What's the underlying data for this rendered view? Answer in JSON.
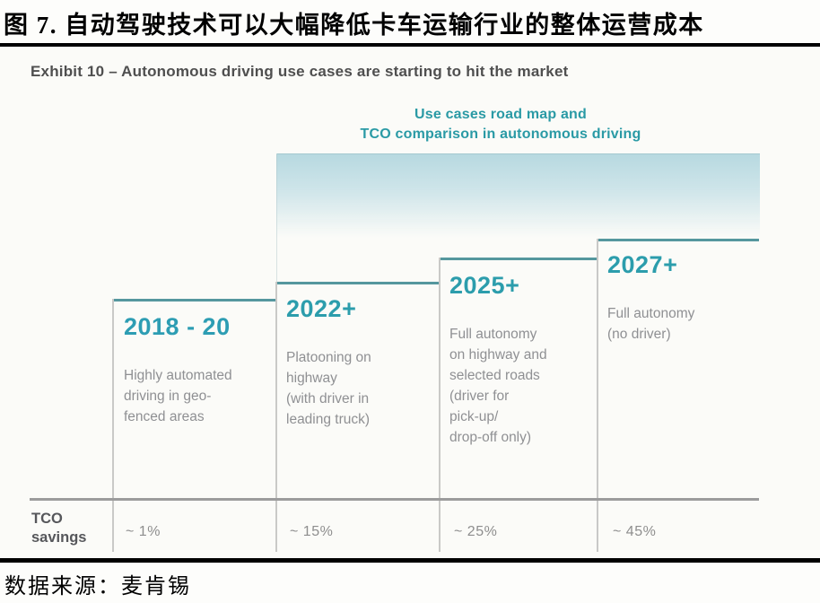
{
  "report": {
    "title_cn": "图 7. 自动驾驶技术可以大幅降低卡车运输行业的整体运营成本",
    "source_cn": "数据来源：麦肯锡"
  },
  "exhibit": {
    "heading": "Exhibit 10 – Autonomous driving use cases are starting to hit the market",
    "subtitle": "Use cases road map and\nTCO comparison in autonomous driving"
  },
  "steps": [
    {
      "year": "2018 - 20",
      "description": "Highly automated\ndriving in geo-\nfenced areas",
      "tco_saving": "~ 1%"
    },
    {
      "year": "2022+",
      "description": "Platooning on\nhighway\n(with driver in\nleading truck)",
      "tco_saving": "~ 15%"
    },
    {
      "year": "2025+",
      "description": "Full autonomy\non highway and\nselected roads\n(driver for\npick-up/\ndrop-off only)",
      "tco_saving": "~ 25%"
    },
    {
      "year": "2027+",
      "description": "Full autonomy\n(no driver)",
      "tco_saving": "~ 45%"
    }
  ],
  "tco_row": {
    "label": "TCO\nsavings"
  },
  "colors": {
    "accent_teal": "#2c9dac",
    "step_line_teal": "#55979e",
    "band_gradient_top": "#b7d9e0",
    "body_text_gray": "#8f9093",
    "heading_gray": "#4f4f4f",
    "rule_black": "#000000"
  },
  "chart_data": {
    "type": "table",
    "title": "Use cases road map and TCO comparison in autonomous driving",
    "categories": [
      "2018 - 20",
      "2022+",
      "2025+",
      "2027+"
    ],
    "category_descriptions": [
      "Highly automated driving in geo-fenced areas",
      "Platooning on highway (with driver in leading truck)",
      "Full autonomy on highway and selected roads (driver for pick-up/ drop-off only)",
      "Full autonomy (no driver)"
    ],
    "series": [
      {
        "name": "TCO savings",
        "values_pct": [
          1,
          15,
          25,
          45
        ],
        "labels": [
          "~ 1%",
          "~ 15%",
          "~ 25%",
          "~ 45%"
        ]
      }
    ],
    "layout": "ascending staircase timeline, left to right; teal gradient band across top"
  }
}
